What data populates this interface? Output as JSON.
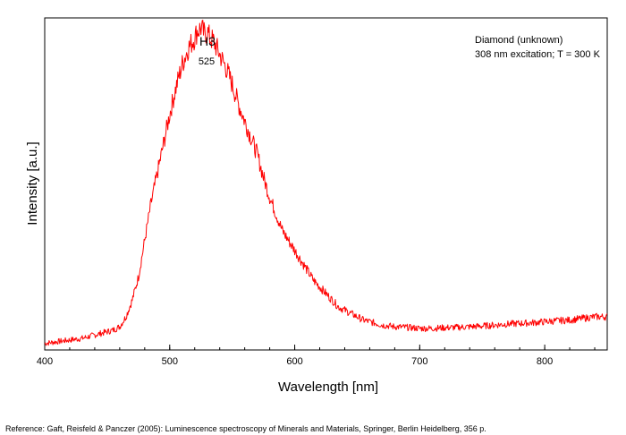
{
  "chart_data": {
    "type": "line",
    "title": "",
    "xlabel": "Wavelength [nm]",
    "ylabel": "Intensity [a.u.]",
    "xlim": [
      400,
      850
    ],
    "ylim": [
      0,
      1.0
    ],
    "x_ticks": [
      "400",
      "500",
      "600",
      "700",
      "800"
    ],
    "grid": false,
    "line_color": "#ff0000",
    "series": [
      {
        "x": [
          400,
          410,
          420,
          430,
          440,
          450,
          455,
          460,
          465,
          470,
          475,
          480,
          485,
          490,
          495,
          500,
          505,
          510,
          515,
          520,
          522,
          525,
          528,
          530,
          532,
          535,
          540,
          545,
          550,
          555,
          560,
          565,
          570,
          575,
          580,
          585,
          590,
          595,
          600,
          605,
          610,
          615,
          620,
          625,
          630,
          635,
          640,
          645,
          650,
          655,
          660,
          670,
          680,
          690,
          700,
          710,
          720,
          730,
          740,
          750,
          760,
          770,
          780,
          790,
          800,
          810,
          820,
          830,
          840,
          850
        ],
        "values": [
          0.02,
          0.025,
          0.03,
          0.035,
          0.045,
          0.055,
          0.06,
          0.07,
          0.1,
          0.15,
          0.22,
          0.33,
          0.44,
          0.53,
          0.62,
          0.71,
          0.79,
          0.86,
          0.91,
          0.94,
          0.96,
          0.97,
          0.95,
          0.96,
          0.94,
          0.93,
          0.89,
          0.85,
          0.8,
          0.74,
          0.69,
          0.64,
          0.59,
          0.52,
          0.46,
          0.41,
          0.36,
          0.33,
          0.3,
          0.27,
          0.24,
          0.21,
          0.19,
          0.17,
          0.15,
          0.13,
          0.12,
          0.11,
          0.1,
          0.09,
          0.085,
          0.075,
          0.07,
          0.068,
          0.065,
          0.065,
          0.067,
          0.068,
          0.07,
          0.072,
          0.075,
          0.078,
          0.08,
          0.082,
          0.085,
          0.088,
          0.09,
          0.095,
          0.1,
          0.1
        ]
      }
    ]
  },
  "annotations": {
    "peak_label": "H3",
    "peak_value": "525",
    "sample_line1": "Diamond (unknown)",
    "sample_line2": "308 nm excitation; T = 300 K"
  },
  "reference": "Reference: Gaft, Reisfeld & Panczer (2005): Luminescence spectroscopy of Minerals and Materials, Springer, Berlin Heidelberg, 356 p."
}
